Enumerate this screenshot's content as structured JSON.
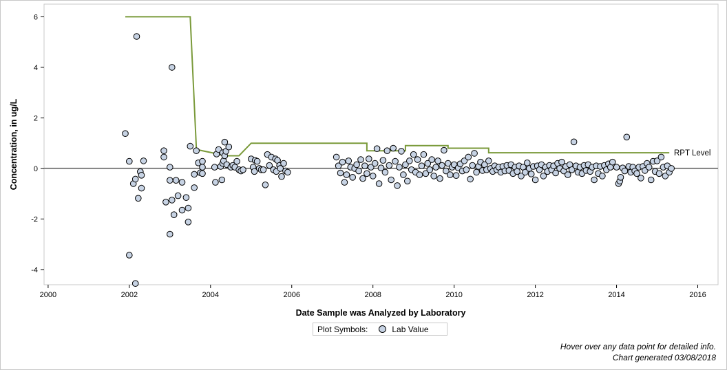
{
  "chart_data": {
    "type": "scatter",
    "title": "",
    "xlabel": "Date Sample was Analyzed by Laboratory",
    "ylabel": "Concentration, in ug/L",
    "xlim": [
      1999.9,
      2016.5
    ],
    "ylim": [
      -4.6,
      6.5
    ],
    "x_ticks": [
      2000,
      2002,
      2004,
      2006,
      2008,
      2010,
      2012,
      2014,
      2016
    ],
    "y_ticks": [
      -4,
      -2,
      0,
      2,
      4,
      6
    ],
    "zero_line": 0,
    "grid": false,
    "legend": {
      "title": "Plot Symbols:",
      "entries": [
        "Lab Value"
      ],
      "placement": "bottom-center"
    },
    "colors": {
      "marker_fill": "#c7d3e4",
      "marker_stroke": "#000000",
      "rpt_line": "#7a9a3a",
      "zero_line": "#808080"
    },
    "series": [
      {
        "name": "Lab Value",
        "points": [
          [
            2001.9,
            1.38
          ],
          [
            2002.0,
            0.28
          ],
          [
            2002.0,
            -3.43
          ],
          [
            2002.1,
            -0.6
          ],
          [
            2002.15,
            -4.55
          ],
          [
            2002.15,
            -0.42
          ],
          [
            2002.18,
            5.22
          ],
          [
            2002.22,
            -1.18
          ],
          [
            2002.27,
            -0.13
          ],
          [
            2002.3,
            -0.78
          ],
          [
            2002.3,
            -0.27
          ],
          [
            2002.35,
            0.3
          ],
          [
            2002.85,
            0.7
          ],
          [
            2002.85,
            0.45
          ],
          [
            2002.9,
            -1.33
          ],
          [
            2003.0,
            0.05
          ],
          [
            2003.0,
            -0.47
          ],
          [
            2003.0,
            -2.6
          ],
          [
            2003.05,
            -1.25
          ],
          [
            2003.05,
            4.0
          ],
          [
            2003.1,
            -1.83
          ],
          [
            2003.15,
            -0.47
          ],
          [
            2003.2,
            -1.08
          ],
          [
            2003.3,
            -0.55
          ],
          [
            2003.3,
            -1.65
          ],
          [
            2003.4,
            -1.15
          ],
          [
            2003.45,
            -2.12
          ],
          [
            2003.45,
            -1.57
          ],
          [
            2003.5,
            0.88
          ],
          [
            2003.6,
            -0.23
          ],
          [
            2003.6,
            -0.76
          ],
          [
            2003.65,
            0.7
          ],
          [
            2003.7,
            0.22
          ],
          [
            2003.75,
            -0.17
          ],
          [
            2003.8,
            0.05
          ],
          [
            2003.8,
            -0.2
          ],
          [
            2003.8,
            0.28
          ],
          [
            2004.1,
            0.05
          ],
          [
            2004.12,
            -0.55
          ],
          [
            2004.15,
            0.57
          ],
          [
            2004.2,
            0.75
          ],
          [
            2004.25,
            0.08
          ],
          [
            2004.28,
            -0.45
          ],
          [
            2004.3,
            0.2
          ],
          [
            2004.3,
            0.62
          ],
          [
            2004.32,
            0.3
          ],
          [
            2004.35,
            1.04
          ],
          [
            2004.35,
            0.5
          ],
          [
            2004.38,
            0.68
          ],
          [
            2004.4,
            0.15
          ],
          [
            2004.45,
            0.85
          ],
          [
            2004.5,
            0.05
          ],
          [
            2004.55,
            0.12
          ],
          [
            2004.6,
            0.05
          ],
          [
            2004.65,
            0.28
          ],
          [
            2004.7,
            -0.05
          ],
          [
            2004.75,
            -0.1
          ],
          [
            2004.8,
            -0.05
          ],
          [
            2005.0,
            0.38
          ],
          [
            2005.05,
            0.05
          ],
          [
            2005.08,
            -0.12
          ],
          [
            2005.1,
            0.32
          ],
          [
            2005.15,
            0.28
          ],
          [
            2005.2,
            0.0
          ],
          [
            2005.25,
            -0.05
          ],
          [
            2005.3,
            -0.05
          ],
          [
            2005.35,
            -0.65
          ],
          [
            2005.4,
            0.55
          ],
          [
            2005.45,
            0.12
          ],
          [
            2005.5,
            0.45
          ],
          [
            2005.55,
            -0.05
          ],
          [
            2005.6,
            0.38
          ],
          [
            2005.62,
            -0.12
          ],
          [
            2005.65,
            0.32
          ],
          [
            2005.7,
            0.12
          ],
          [
            2005.72,
            0.0
          ],
          [
            2005.75,
            -0.32
          ],
          [
            2005.8,
            0.2
          ],
          [
            2005.85,
            -0.1
          ],
          [
            2005.9,
            -0.15
          ],
          [
            2007.1,
            0.45
          ],
          [
            2007.15,
            0.1
          ],
          [
            2007.2,
            -0.18
          ],
          [
            2007.25,
            0.25
          ],
          [
            2007.3,
            -0.55
          ],
          [
            2007.35,
            -0.25
          ],
          [
            2007.4,
            0.3
          ],
          [
            2007.45,
            0.05
          ],
          [
            2007.5,
            -0.35
          ],
          [
            2007.55,
            0.0
          ],
          [
            2007.6,
            0.15
          ],
          [
            2007.65,
            -0.1
          ],
          [
            2007.7,
            0.35
          ],
          [
            2007.75,
            -0.4
          ],
          [
            2007.8,
            0.1
          ],
          [
            2007.85,
            -0.2
          ],
          [
            2007.9,
            0.38
          ],
          [
            2007.95,
            0.05
          ],
          [
            2008.0,
            -0.3
          ],
          [
            2008.05,
            0.2
          ],
          [
            2008.1,
            0.78
          ],
          [
            2008.15,
            -0.6
          ],
          [
            2008.2,
            0.02
          ],
          [
            2008.25,
            0.32
          ],
          [
            2008.3,
            -0.15
          ],
          [
            2008.35,
            0.7
          ],
          [
            2008.4,
            0.12
          ],
          [
            2008.45,
            -0.45
          ],
          [
            2008.5,
            0.8
          ],
          [
            2008.55,
            0.28
          ],
          [
            2008.6,
            -0.68
          ],
          [
            2008.65,
            0.05
          ],
          [
            2008.7,
            0.68
          ],
          [
            2008.75,
            -0.25
          ],
          [
            2008.8,
            0.15
          ],
          [
            2008.85,
            -0.5
          ],
          [
            2008.9,
            0.3
          ],
          [
            2008.95,
            -0.05
          ],
          [
            2009.0,
            0.55
          ],
          [
            2009.05,
            -0.15
          ],
          [
            2009.1,
            0.35
          ],
          [
            2009.15,
            -0.25
          ],
          [
            2009.2,
            0.1
          ],
          [
            2009.25,
            0.55
          ],
          [
            2009.3,
            -0.2
          ],
          [
            2009.35,
            0.2
          ],
          [
            2009.4,
            -0.05
          ],
          [
            2009.45,
            0.35
          ],
          [
            2009.5,
            -0.3
          ],
          [
            2009.55,
            0.05
          ],
          [
            2009.6,
            0.3
          ],
          [
            2009.65,
            -0.4
          ],
          [
            2009.7,
            0.12
          ],
          [
            2009.75,
            0.72
          ],
          [
            2009.8,
            -0.1
          ],
          [
            2009.85,
            0.2
          ],
          [
            2009.9,
            -0.25
          ],
          [
            2009.95,
            0.05
          ],
          [
            2010.0,
            0.15
          ],
          [
            2010.05,
            -0.28
          ],
          [
            2010.1,
            0.02
          ],
          [
            2010.15,
            0.18
          ],
          [
            2010.2,
            -0.1
          ],
          [
            2010.25,
            0.3
          ],
          [
            2010.3,
            -0.05
          ],
          [
            2010.35,
            0.45
          ],
          [
            2010.4,
            -0.42
          ],
          [
            2010.45,
            0.12
          ],
          [
            2010.5,
            0.6
          ],
          [
            2010.55,
            -0.15
          ],
          [
            2010.6,
            0.08
          ],
          [
            2010.65,
            0.25
          ],
          [
            2010.7,
            -0.08
          ],
          [
            2010.75,
            0.15
          ],
          [
            2010.8,
            -0.05
          ],
          [
            2010.85,
            0.3
          ],
          [
            2010.9,
            0.0
          ],
          [
            2010.95,
            -0.12
          ],
          [
            2011.0,
            0.1
          ],
          [
            2011.05,
            -0.05
          ],
          [
            2011.1,
            0.05
          ],
          [
            2011.15,
            -0.15
          ],
          [
            2011.2,
            0.08
          ],
          [
            2011.25,
            -0.1
          ],
          [
            2011.3,
            0.12
          ],
          [
            2011.35,
            -0.08
          ],
          [
            2011.4,
            0.15
          ],
          [
            2011.45,
            -0.2
          ],
          [
            2011.5,
            0.05
          ],
          [
            2011.55,
            -0.12
          ],
          [
            2011.6,
            0.1
          ],
          [
            2011.65,
            -0.3
          ],
          [
            2011.7,
            0.05
          ],
          [
            2011.75,
            -0.15
          ],
          [
            2011.8,
            0.22
          ],
          [
            2011.85,
            0.0
          ],
          [
            2011.9,
            -0.22
          ],
          [
            2011.95,
            0.08
          ],
          [
            2012.0,
            -0.45
          ],
          [
            2012.05,
            0.1
          ],
          [
            2012.1,
            -0.05
          ],
          [
            2012.15,
            0.15
          ],
          [
            2012.2,
            -0.3
          ],
          [
            2012.25,
            0.05
          ],
          [
            2012.3,
            -0.12
          ],
          [
            2012.35,
            0.12
          ],
          [
            2012.4,
            -0.05
          ],
          [
            2012.45,
            0.1
          ],
          [
            2012.5,
            -0.18
          ],
          [
            2012.55,
            0.2
          ],
          [
            2012.6,
            0.0
          ],
          [
            2012.65,
            0.25
          ],
          [
            2012.7,
            -0.1
          ],
          [
            2012.75,
            0.08
          ],
          [
            2012.8,
            -0.25
          ],
          [
            2012.85,
            0.15
          ],
          [
            2012.9,
            -0.05
          ],
          [
            2012.95,
            1.05
          ],
          [
            2013.0,
            0.1
          ],
          [
            2013.05,
            -0.15
          ],
          [
            2013.1,
            0.05
          ],
          [
            2013.15,
            -0.2
          ],
          [
            2013.2,
            0.12
          ],
          [
            2013.25,
            -0.08
          ],
          [
            2013.3,
            0.15
          ],
          [
            2013.35,
            -0.12
          ],
          [
            2013.4,
            0.05
          ],
          [
            2013.45,
            -0.45
          ],
          [
            2013.5,
            0.1
          ],
          [
            2013.55,
            -0.2
          ],
          [
            2013.6,
            0.08
          ],
          [
            2013.65,
            -0.3
          ],
          [
            2013.7,
            0.12
          ],
          [
            2013.75,
            -0.05
          ],
          [
            2013.8,
            0.18
          ],
          [
            2013.85,
            0.05
          ],
          [
            2013.9,
            0.25
          ],
          [
            2014.0,
            0.05
          ],
          [
            2014.05,
            -0.6
          ],
          [
            2014.08,
            -0.5
          ],
          [
            2014.1,
            -0.35
          ],
          [
            2014.15,
            0.02
          ],
          [
            2014.2,
            -0.1
          ],
          [
            2014.25,
            1.24
          ],
          [
            2014.3,
            0.08
          ],
          [
            2014.35,
            -0.15
          ],
          [
            2014.4,
            0.05
          ],
          [
            2014.45,
            -0.1
          ],
          [
            2014.5,
            -0.2
          ],
          [
            2014.55,
            0.05
          ],
          [
            2014.6,
            -0.38
          ],
          [
            2014.65,
            0.08
          ],
          [
            2014.7,
            -0.08
          ],
          [
            2014.75,
            0.2
          ],
          [
            2014.8,
            0.05
          ],
          [
            2014.85,
            -0.45
          ],
          [
            2014.9,
            0.28
          ],
          [
            2014.95,
            -0.12
          ],
          [
            2015.0,
            0.3
          ],
          [
            2015.05,
            -0.2
          ],
          [
            2015.1,
            0.45
          ],
          [
            2015.15,
            0.05
          ],
          [
            2015.2,
            -0.3
          ],
          [
            2015.25,
            0.1
          ],
          [
            2015.3,
            -0.15
          ],
          [
            2015.35,
            0.0
          ]
        ]
      }
    ],
    "reference_line": {
      "name": "RPT Level",
      "points": [
        [
          2001.9,
          6.0
        ],
        [
          2003.5,
          6.0
        ],
        [
          2003.65,
          0.8
        ],
        [
          2003.65,
          0.75
        ],
        [
          2004.1,
          0.6
        ],
        [
          2004.35,
          0.5
        ],
        [
          2004.7,
          0.5
        ],
        [
          2005.0,
          1.0
        ],
        [
          2007.85,
          1.0
        ],
        [
          2007.85,
          0.7
        ],
        [
          2008.8,
          0.7
        ],
        [
          2008.8,
          0.9
        ],
        [
          2009.85,
          0.9
        ],
        [
          2009.85,
          0.8
        ],
        [
          2010.85,
          0.8
        ],
        [
          2010.85,
          0.62
        ],
        [
          2015.3,
          0.62
        ]
      ]
    }
  },
  "legend_box": {
    "title": "Plot Symbols:",
    "entry": "Lab Value"
  },
  "footnotes": {
    "hover": "Hover over any data point for detailed info.",
    "generated": "Chart generated 03/08/2018"
  }
}
